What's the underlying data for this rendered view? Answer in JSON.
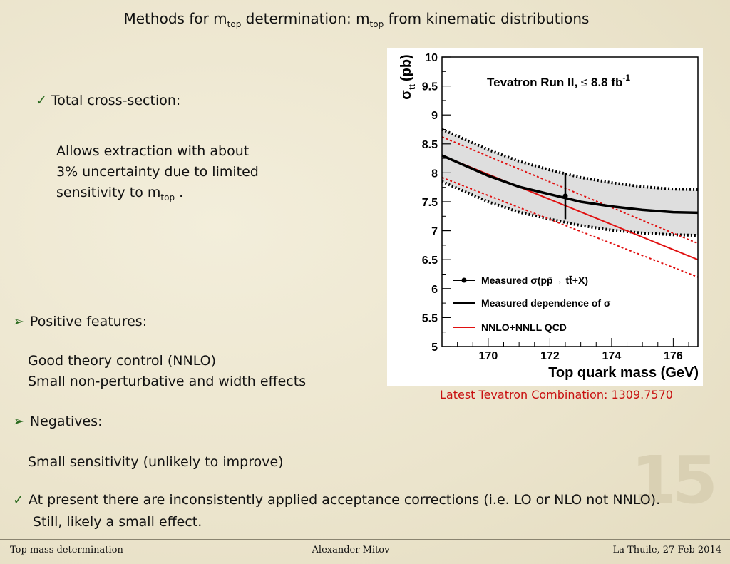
{
  "title": {
    "pre": "Methods for m",
    "sub1": "top",
    "mid": " determination: m",
    "sub2": "top",
    "post": " from kinematic distributions"
  },
  "icons": {
    "check": "✓",
    "arrow": "➢"
  },
  "bullets": {
    "cross_section": "Total cross-section:",
    "allows": {
      "line1": "Allows extraction with about",
      "line2": "3% uncertainty due to limited",
      "line3_pre": "sensitivity to m",
      "line3_sub": "top",
      "line3_post": " ."
    },
    "positive": "Positive features:",
    "pos1": "Good theory control (NNLO)",
    "pos2": "Small non-perturbative and width effects",
    "negatives": "Negatives:",
    "neg1": "Small sensitivity (unlikely to improve)",
    "present1": "At present there are inconsistently applied acceptance corrections (i.e. LO or NLO not NNLO).",
    "present2": "Still, likely a small effect."
  },
  "reference": "Latest Tevatron Combination: 1309.7570",
  "page_number": "15",
  "footer": {
    "left": "Top mass determination",
    "center": "Alexander Mitov",
    "right": "La Thuile, 27 Feb 2014"
  },
  "chart_data": {
    "type": "line",
    "annotation_main": "Tevatron Run II, ",
    "annotation_le": "≤",
    "annotation_lumi": " 8.8 fb",
    "annotation_sup": "-1",
    "xlabel": "Top quark mass (GeV)",
    "ylabel_sigma": "σ",
    "ylabel_sub": "tt̄",
    "ylabel_unit": "(pb)",
    "xlim": [
      168.5,
      176.8
    ],
    "ylim": [
      5,
      10
    ],
    "xticks": [
      170,
      172,
      174,
      176
    ],
    "yticks": [
      5,
      5.5,
      6,
      6.5,
      7,
      7.5,
      8,
      8.5,
      9,
      9.5,
      10
    ],
    "ytick_labels": [
      "5",
      "5.5",
      "6",
      "6.5",
      "7",
      "7.5",
      "8",
      "8.5",
      "9",
      "9.5",
      "10"
    ],
    "xtick_labels": [
      "170",
      "172",
      "174",
      "176"
    ],
    "legend": {
      "measured_point": "Measured σ(pp̄→ tt̄+X)",
      "measured_dep": "Measured dependence of σ",
      "theory": "NNLO+NNLL QCD"
    },
    "measured_point": {
      "x": 172.5,
      "y": 7.6,
      "yerr": [
        7.2,
        8.0
      ]
    },
    "measured_dependence": {
      "x": [
        168.5,
        170,
        171,
        172,
        173,
        174,
        175,
        176,
        176.8
      ],
      "y": [
        8.3,
        7.95,
        7.76,
        7.63,
        7.5,
        7.42,
        7.36,
        7.32,
        7.31
      ],
      "up": [
        8.75,
        8.4,
        8.2,
        8.05,
        7.92,
        7.83,
        7.76,
        7.72,
        7.71
      ],
      "low": [
        7.85,
        7.5,
        7.32,
        7.2,
        7.09,
        7.01,
        6.96,
        6.93,
        6.92
      ]
    },
    "theory": {
      "x": [
        168.5,
        176.8
      ],
      "y": [
        8.3,
        6.5
      ],
      "up": [
        8.62,
        6.78
      ],
      "low": [
        7.92,
        6.2
      ]
    },
    "colors": {
      "measured": "#000000",
      "band": "#dedede",
      "theory": "#e01010"
    }
  }
}
